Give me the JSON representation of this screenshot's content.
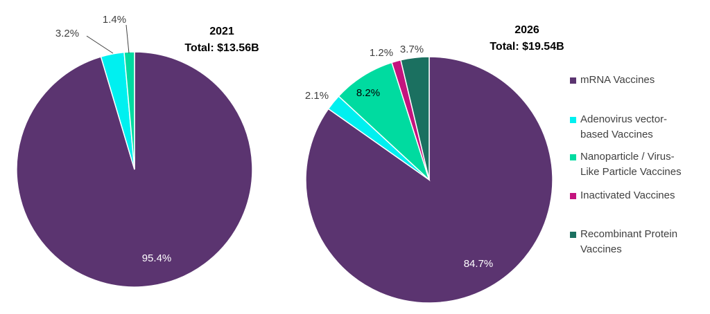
{
  "chart_data": [
    {
      "type": "pie",
      "title": "2021",
      "subtitle": "Total: $13.56B",
      "slices": [
        {
          "name": "mRNA Vaccines",
          "value": 95.4,
          "label": "95.4%"
        },
        {
          "name": "Adenovirus vector-based Vaccines",
          "value": 3.2,
          "label": "3.2%"
        },
        {
          "name": "Nanoparticle / Virus-Like Particle Vaccines",
          "value": 1.4,
          "label": "1.4%"
        }
      ]
    },
    {
      "type": "pie",
      "title": "2026",
      "subtitle": "Total: $19.54B",
      "slices": [
        {
          "name": "mRNA Vaccines",
          "value": 84.7,
          "label": "84.7%"
        },
        {
          "name": "Adenovirus vector-based Vaccines",
          "value": 2.1,
          "label": "2.1%"
        },
        {
          "name": "Nanoparticle / Virus-Like Particle Vaccines",
          "value": 8.2,
          "label": "8.2%"
        },
        {
          "name": "Inactivated Vaccines",
          "value": 1.2,
          "label": "1.2%"
        },
        {
          "name": "Recombinant Protein Vaccines",
          "value": 3.7,
          "label": "3.7%"
        }
      ]
    }
  ],
  "legend": {
    "placement": "right",
    "items": [
      {
        "name": "mRNA Vaccines",
        "lines": [
          "mRNA Vaccines"
        ],
        "color": "#5B3470"
      },
      {
        "name": "Adenovirus vector-based Vaccines",
        "lines": [
          "Adenovirus vector-",
          "based Vaccines"
        ],
        "color": "#00F0F0"
      },
      {
        "name": "Nanoparticle / Virus-Like Particle Vaccines",
        "lines": [
          "Nanoparticle / Virus-",
          "Like Particle Vaccines"
        ],
        "color": "#00DBA0"
      },
      {
        "name": "Inactivated Vaccines",
        "lines": [
          "Inactivated Vaccines"
        ],
        "color": "#C4147E"
      },
      {
        "name": "Recombinant Protein Vaccines",
        "lines": [
          "Recombinant Protein",
          "Vaccines"
        ],
        "color": "#1B7060"
      }
    ]
  }
}
